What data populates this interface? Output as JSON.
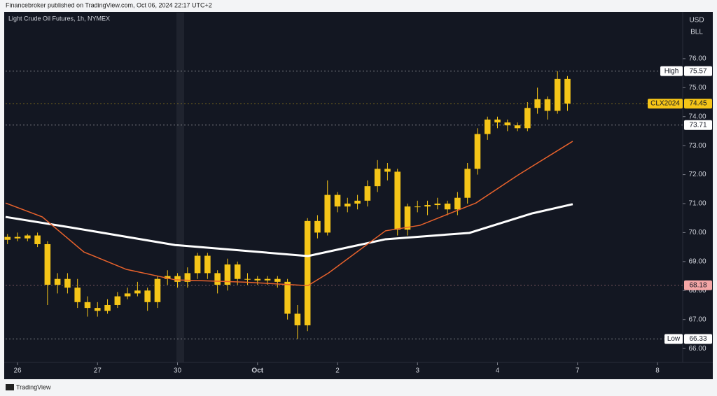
{
  "header": "Financebroker published on TradingView.com, Oct 06, 2024 22:17 UTC+2",
  "footer": "TradingView",
  "chart_data": {
    "type": "candlestick",
    "title": "Light Crude Oil Futures, 1h, NYMEX",
    "currency": "USD",
    "unit": "BLL",
    "color": "#f5c518",
    "x": [
      -0.125,
      0,
      0.125,
      0.25,
      0.375,
      0.5,
      0.625,
      0.75,
      0.875,
      1,
      1.125,
      1.25,
      1.375,
      1.5,
      1.625,
      1.75,
      1.875,
      2,
      2.125,
      2.25,
      2.375,
      2.5,
      2.625,
      2.75,
      2.875,
      3,
      3.125,
      3.25,
      3.375,
      3.5,
      3.625,
      3.75,
      3.875,
      4,
      4.125,
      4.25,
      4.375,
      4.5,
      4.625,
      4.75,
      4.875,
      5,
      5.125,
      5.25,
      5.375,
      5.5,
      5.625,
      5.75,
      5.875,
      6,
      6.125,
      6.25,
      6.375,
      6.5,
      6.625,
      6.75,
      6.875
    ],
    "open": [
      69.75,
      69.85,
      69.8,
      69.9,
      69.6,
      68.2,
      68.4,
      68.1,
      67.6,
      67.4,
      67.3,
      67.5,
      67.8,
      67.9,
      68.0,
      67.6,
      68.4,
      68.5,
      68.3,
      68.6,
      69.2,
      68.6,
      68.2,
      68.9,
      68.4,
      68.4,
      68.35,
      68.4,
      68.3,
      67.2,
      66.8,
      70.4,
      70.0,
      71.3,
      70.9,
      71.0,
      71.1,
      71.6,
      72.2,
      72.1,
      70.1,
      70.9,
      70.9,
      70.95,
      71.0,
      70.8,
      71.2,
      72.2,
      73.4,
      73.9,
      73.8,
      73.7,
      73.6,
      74.3,
      74.6,
      74.2,
      75.3
    ],
    "high": [
      69.95,
      70.0,
      69.95,
      70.0,
      69.7,
      68.6,
      68.6,
      68.4,
      67.8,
      67.6,
      67.7,
      67.95,
      68.1,
      68.3,
      68.1,
      68.5,
      68.7,
      68.6,
      68.8,
      69.3,
      69.3,
      68.7,
      69.1,
      69.0,
      68.6,
      68.5,
      68.5,
      68.5,
      68.4,
      67.5,
      70.5,
      70.6,
      71.8,
      71.4,
      71.2,
      71.3,
      71.8,
      72.5,
      72.4,
      72.2,
      71.0,
      71.1,
      71.1,
      71.2,
      71.1,
      71.4,
      72.4,
      73.6,
      74.0,
      74.0,
      73.9,
      73.8,
      74.5,
      75.0,
      74.7,
      75.57,
      75.4
    ],
    "low": [
      69.6,
      69.7,
      69.7,
      69.5,
      67.5,
      67.9,
      67.9,
      67.4,
      67.1,
      67.1,
      67.2,
      67.4,
      67.7,
      67.8,
      67.3,
      67.4,
      68.2,
      68.1,
      68.1,
      68.4,
      68.4,
      67.9,
      68.0,
      68.2,
      68.2,
      68.2,
      68.2,
      68.1,
      67.0,
      66.33,
      66.6,
      69.8,
      69.9,
      70.7,
      70.7,
      70.8,
      70.9,
      71.4,
      71.8,
      69.9,
      69.9,
      70.7,
      70.6,
      70.8,
      70.6,
      70.6,
      71.0,
      72.0,
      73.2,
      73.6,
      73.5,
      73.5,
      73.5,
      74.1,
      73.9,
      74.1,
      74.2
    ],
    "close": [
      69.85,
      69.8,
      69.9,
      69.6,
      68.2,
      68.4,
      68.1,
      67.6,
      67.4,
      67.3,
      67.5,
      67.8,
      67.9,
      68.0,
      67.6,
      68.4,
      68.5,
      68.3,
      68.6,
      69.2,
      68.6,
      68.2,
      68.9,
      68.4,
      68.4,
      68.35,
      68.4,
      68.3,
      67.2,
      66.8,
      70.4,
      70.0,
      71.3,
      70.9,
      71.0,
      71.1,
      71.6,
      72.2,
      72.1,
      70.1,
      70.9,
      70.9,
      70.95,
      71.0,
      70.8,
      71.2,
      72.2,
      73.4,
      73.9,
      73.8,
      73.7,
      73.6,
      74.3,
      74.6,
      74.2,
      75.3,
      74.45
    ],
    "overlays": [
      {
        "color": "#ffffff",
        "x": [
          -0.149,
          0.66,
          1.97,
          3.63,
          4.6,
          5.65,
          6.43,
          6.94
        ],
        "values": [
          70.54,
          70.18,
          69.57,
          69.19,
          69.77,
          69.99,
          70.66,
          70.98
        ]
      },
      {
        "color": "#e8622c",
        "x": [
          -0.149,
          0.31,
          0.83,
          1.36,
          1.97,
          2.84,
          3.63,
          3.89,
          4.6,
          5.03,
          5.73,
          6.26,
          6.94
        ],
        "values": [
          71.02,
          70.54,
          69.33,
          68.73,
          68.37,
          68.29,
          68.17,
          68.61,
          70.06,
          70.25,
          71.02,
          71.99,
          73.15
        ]
      }
    ],
    "price_labels": [
      {
        "label": "High",
        "value": 75.57,
        "color": "#ffffff"
      },
      {
        "label": "CLX2024",
        "value": 74.45,
        "color": "#f5c518"
      },
      {
        "value": 73.71,
        "color": "#ffffff"
      },
      {
        "value": 68.18,
        "color": "#f4a6a6"
      },
      {
        "label": "Low",
        "value": 66.33,
        "color": "#ffffff"
      }
    ],
    "xlim": [
      -0.149,
      8.315
    ],
    "xticks": [
      {
        "value": 0,
        "label": "26"
      },
      {
        "value": 1,
        "label": "27"
      },
      {
        "value": 2,
        "label": "30"
      },
      {
        "value": 3,
        "label": "Oct"
      },
      {
        "value": 4,
        "label": "2"
      },
      {
        "value": 5,
        "label": "3"
      },
      {
        "value": 6,
        "label": "4"
      },
      {
        "value": 7,
        "label": "7"
      },
      {
        "value": 8,
        "label": "8"
      }
    ],
    "ylim": [
      65.52,
      77.59
    ],
    "yticks": [
      {
        "value": 66,
        "label": "66.00"
      },
      {
        "value": 67,
        "label": "67.00"
      },
      {
        "value": 68,
        "label": "68.00"
      },
      {
        "value": 69,
        "label": "69.00"
      },
      {
        "value": 70,
        "label": "70.00"
      },
      {
        "value": 71,
        "label": "71.00"
      },
      {
        "value": 72,
        "label": "72.00"
      },
      {
        "value": 73,
        "label": "73.00"
      },
      {
        "value": 74,
        "label": "74.00"
      },
      {
        "value": 75,
        "label": "75.00"
      },
      {
        "value": 76,
        "label": "76.00"
      }
    ]
  }
}
